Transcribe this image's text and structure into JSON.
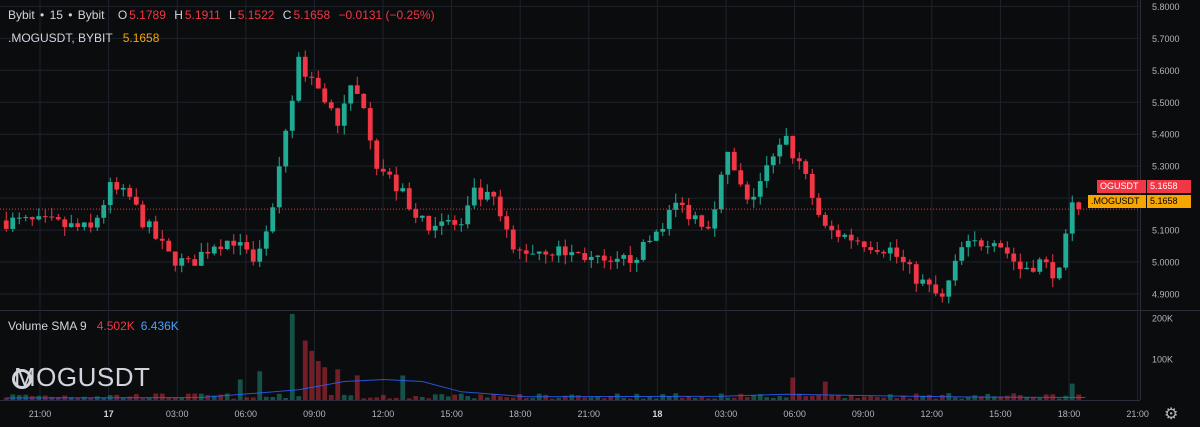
{
  "header": {
    "exchange": "Bybit",
    "interval": "15",
    "source": "Bybit",
    "ohlc": {
      "o_label": "O",
      "o": "5.1789",
      "h_label": "H",
      "h": "5.1911",
      "l_label": "L",
      "l": "5.1522",
      "c_label": "C",
      "c": "5.1658",
      "change": "−0.0131 (−0.25%)"
    },
    "compare_symbol": ".MOGUSDT, BYBIT",
    "compare_value": "5.1658"
  },
  "volume_legend": {
    "label": "Volume SMA 9",
    "value1": "4.502K",
    "value2": "6.436K"
  },
  "watermark": "MOGUSDT",
  "price_tags": [
    {
      "symbol": "OGUSDT",
      "value": "5.1658",
      "color": "#f23645"
    },
    {
      "symbol": ".MOGUSDT",
      "value": "5.1658",
      "color": "#f7a600"
    }
  ],
  "colors": {
    "up": "#22ab94",
    "down": "#f23645",
    "sma": "#2962ff",
    "grid": "#1e222d",
    "text": "#b2b5be"
  },
  "chart_data": {
    "type": "candlestick",
    "price_axis": {
      "min": 4.85,
      "max": 5.82,
      "ticks": [
        "5.8000",
        "5.7000",
        "5.6000",
        "5.5000",
        "5.4000",
        "5.3000",
        "5.2000",
        "5.1000",
        "5.0000",
        "4.9000"
      ]
    },
    "volume_axis": {
      "max": 200000,
      "ticks": [
        "200K",
        "100K"
      ]
    },
    "x_ticks": [
      "21:00",
      "17",
      "03:00",
      "06:00",
      "09:00",
      "12:00",
      "15:00",
      "18:00",
      "21:00",
      "18",
      "03:00",
      "06:00",
      "09:00",
      "12:00",
      "15:00",
      "18:00",
      "21:00"
    ],
    "last_price": 5.1658,
    "close_path": [
      [
        0,
        5.13
      ],
      [
        8,
        5.12
      ],
      [
        14,
        5.1
      ],
      [
        17,
        5.23
      ],
      [
        20,
        5.2
      ],
      [
        22,
        5.13
      ],
      [
        26,
        5.02
      ],
      [
        29,
        4.99
      ],
      [
        33,
        5.06
      ],
      [
        36,
        5.07
      ],
      [
        39,
        4.99
      ],
      [
        42,
        5.16
      ],
      [
        46,
        5.62
      ],
      [
        49,
        5.55
      ],
      [
        52,
        5.43
      ],
      [
        54,
        5.53
      ],
      [
        56,
        5.5
      ],
      [
        58,
        5.31
      ],
      [
        62,
        5.21
      ],
      [
        65,
        5.12
      ],
      [
        68,
        5.13
      ],
      [
        71,
        5.11
      ],
      [
        73,
        5.21
      ],
      [
        76,
        5.19
      ],
      [
        79,
        5.03
      ],
      [
        84,
        5.04
      ],
      [
        90,
        5.02
      ],
      [
        94,
        4.98
      ],
      [
        99,
        5.04
      ],
      [
        104,
        5.18
      ],
      [
        109,
        5.12
      ],
      [
        112,
        5.33
      ],
      [
        115,
        5.18
      ],
      [
        118,
        5.29
      ],
      [
        121,
        5.38
      ],
      [
        124,
        5.26
      ],
      [
        127,
        5.1
      ],
      [
        132,
        5.07
      ],
      [
        137,
        5.04
      ],
      [
        140,
        4.97
      ],
      [
        145,
        4.88
      ],
      [
        148,
        5.04
      ],
      [
        153,
        5.08
      ],
      [
        157,
        4.98
      ],
      [
        160,
        5.0
      ],
      [
        163,
        4.96
      ],
      [
        165,
        5.17
      ]
    ],
    "big_volumes": [
      [
        44,
        210000
      ],
      [
        46,
        145000
      ],
      [
        47,
        120000
      ],
      [
        48,
        95000
      ],
      [
        49,
        80000
      ],
      [
        39,
        70000
      ],
      [
        51,
        75000
      ],
      [
        61,
        60000
      ],
      [
        36,
        50000
      ],
      [
        54,
        60000
      ],
      [
        126,
        45000
      ],
      [
        164,
        40000
      ],
      [
        121,
        55000
      ]
    ],
    "sma_path": [
      [
        0,
        5000
      ],
      [
        30,
        6000
      ],
      [
        45,
        25000
      ],
      [
        52,
        45000
      ],
      [
        58,
        50000
      ],
      [
        64,
        45000
      ],
      [
        70,
        20000
      ],
      [
        80,
        8000
      ],
      [
        110,
        9000
      ],
      [
        120,
        14000
      ],
      [
        135,
        10000
      ],
      [
        150,
        7000
      ],
      [
        166,
        6000
      ]
    ]
  }
}
